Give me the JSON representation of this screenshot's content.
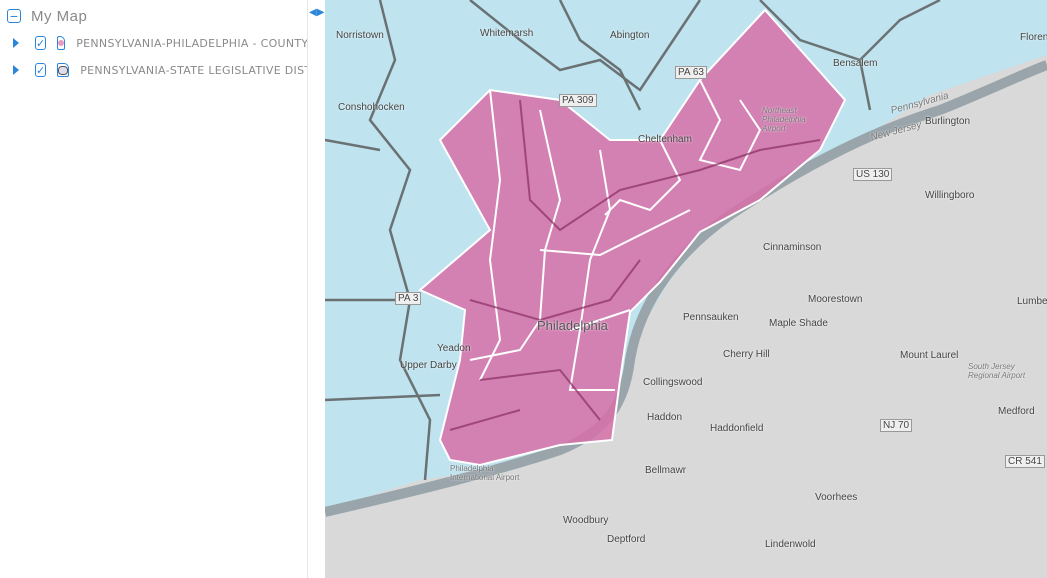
{
  "panel": {
    "title": "My Map",
    "layers": [
      {
        "label": "PENNSYLVANIA-PHILADELPHIA - COUNTY",
        "icon": "polygon-fill-icon",
        "checked": true
      },
      {
        "label": "PENNSYLVANIA-STATE LEGISLATIVE DISTRICTS",
        "icon": "polygon-outline-icon",
        "checked": true
      }
    ],
    "check_glyph": "✓",
    "collapse_glyph": "−"
  },
  "colors": {
    "accent": "#2b86d9",
    "county_fill": "#d670a8",
    "district_fill": "#bfe3ef",
    "land": "#d9d9d9",
    "water": "#8f9ea6"
  },
  "map": {
    "labels": [
      "Norristown",
      "Whitemarsh",
      "Abington",
      "Bensalem",
      "Conshohocken",
      "Cheltenham",
      "Burlington",
      "Willingboro",
      "Cinnaminson",
      "Moorestown",
      "Pennsauken",
      "Maple Shade",
      "Philadelphia",
      "Yeadon",
      "Upper Darby",
      "Cherry Hill",
      "Collingswood",
      "Haddon",
      "Haddonfield",
      "Mount Laurel",
      "Medford",
      "Bellmawr",
      "Voorhees",
      "Woodbury",
      "Deptford",
      "Lindenwold",
      "Philadelphia International Airport",
      "South Jersey Regional Airport",
      "Northeast Philadelphia Airport",
      "Florence",
      "Lumberton",
      "US 130",
      "NJ 70",
      "PA 63",
      "PA 309",
      "PA 3",
      "CR 541",
      "Pennsylvania",
      "New Jersey"
    ],
    "toggle": "◀▶"
  }
}
